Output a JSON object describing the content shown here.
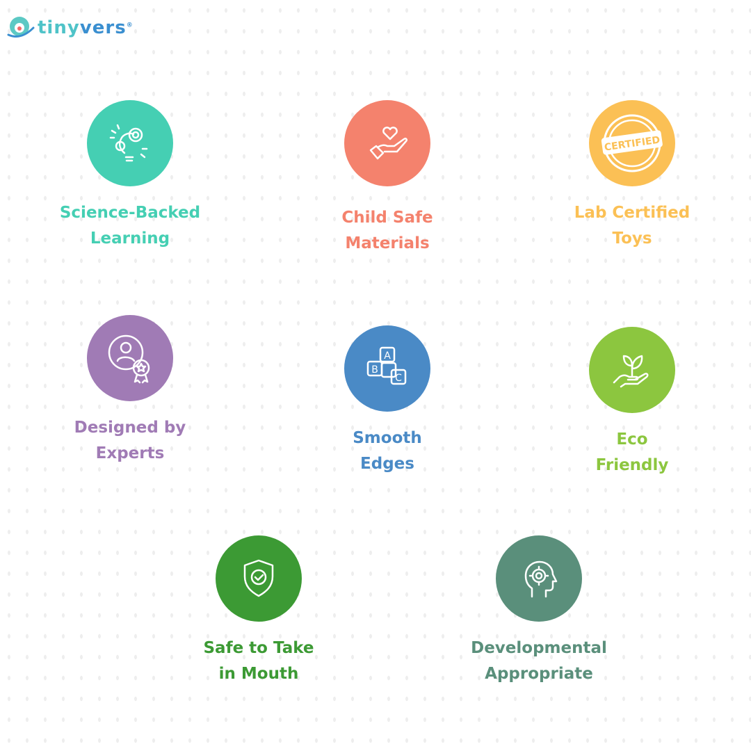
{
  "brand": {
    "name_part1": "tiny",
    "name_part2": "vers",
    "registered": "®"
  },
  "features": [
    {
      "label_line1": "Science-Backed",
      "label_line2": "Learning",
      "color": "#45CFB3",
      "icon": "lightbulb-gears-icon"
    },
    {
      "label_line1": "Child Safe",
      "label_line2": "Materials",
      "color": "#F4826D",
      "icon": "hand-heart-icon"
    },
    {
      "label_line1": "Lab Certified",
      "label_line2": "Toys",
      "color": "#FBC055",
      "icon": "certified-stamp-icon",
      "stamp_text": "CERTIFIED"
    },
    {
      "label_line1": "Designed by",
      "label_line2": "Experts",
      "color": "#A07BB5",
      "icon": "expert-badge-icon"
    },
    {
      "label_line1": "Smooth",
      "label_line2": "Edges",
      "color": "#4A8AC6",
      "icon": "abc-blocks-icon"
    },
    {
      "label_line1": "Eco",
      "label_line2": "Friendly",
      "color": "#8CC63F",
      "icon": "hand-plant-icon"
    },
    {
      "label_line1": "Safe to Take",
      "label_line2": "in Mouth",
      "color": "#3C9A34",
      "icon": "shield-check-icon"
    },
    {
      "label_line1": "Developmental",
      "label_line2": "Appropriate",
      "color": "#5A8F7B",
      "icon": "head-gear-icon"
    }
  ]
}
